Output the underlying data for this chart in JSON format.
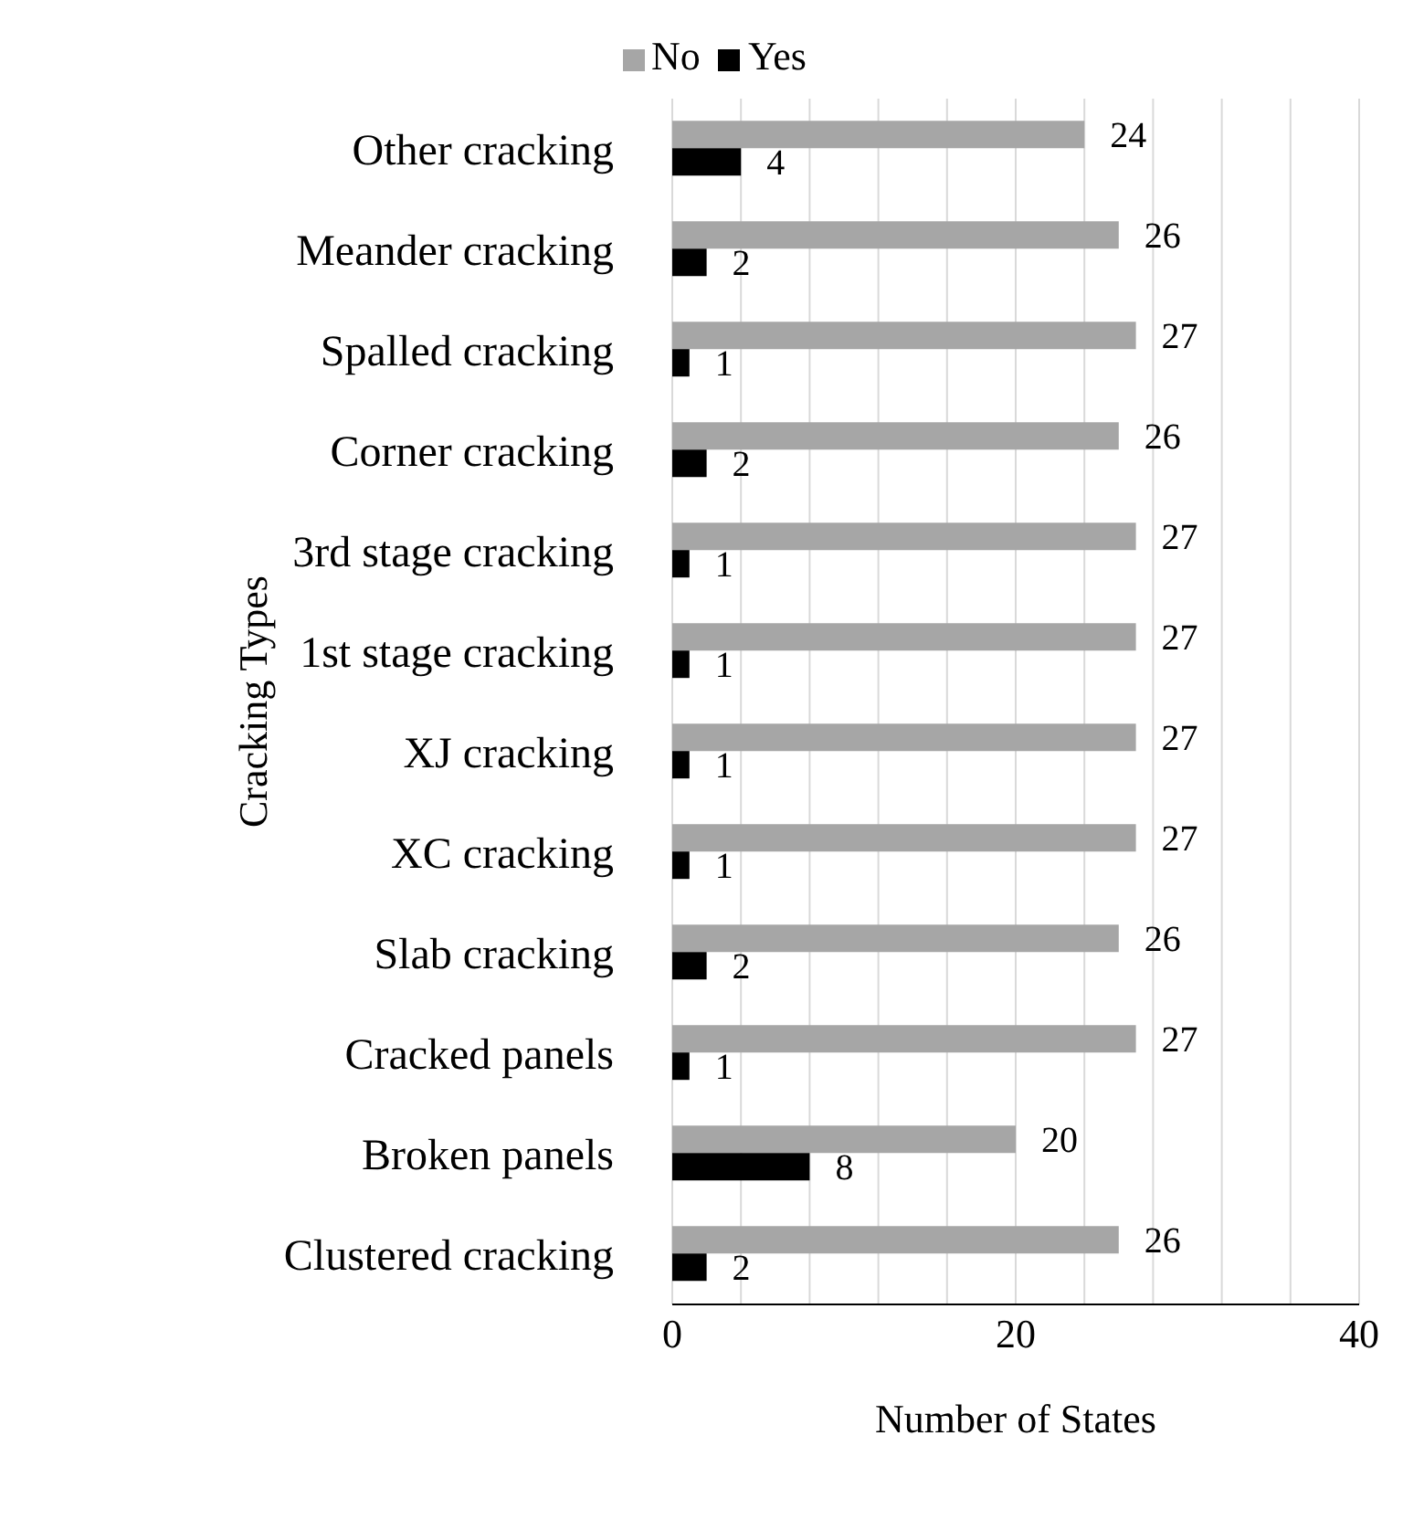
{
  "chart_data": {
    "type": "bar",
    "orientation": "horizontal",
    "xlabel": "Number of States",
    "ylabel": "Cracking Types",
    "categories": [
      "Other cracking",
      "Meander cracking",
      "Spalled cracking",
      "Corner cracking",
      "3rd stage cracking",
      "1st stage cracking",
      "XJ cracking",
      "XC cracking",
      "Slab cracking",
      "Cracked panels",
      "Broken panels",
      "Clustered cracking"
    ],
    "series": [
      {
        "name": "No",
        "color": "#a6a6a6",
        "values": [
          24,
          26,
          27,
          26,
          27,
          27,
          27,
          27,
          26,
          27,
          20,
          26
        ]
      },
      {
        "name": "Yes",
        "color": "#000000",
        "values": [
          4,
          2,
          1,
          2,
          1,
          1,
          1,
          1,
          2,
          1,
          8,
          2
        ]
      }
    ],
    "xlim": [
      0,
      40
    ],
    "xticks": [
      0,
      {
        "value": 4,
        "label": null
      },
      {
        "value": 8,
        "label": null
      },
      {
        "value": 12,
        "label": null
      },
      {
        "value": 16,
        "label": null
      },
      20,
      {
        "value": 24,
        "label": null
      },
      {
        "value": 28,
        "label": null
      },
      {
        "value": 32,
        "label": null
      },
      {
        "value": 36,
        "label": null
      },
      40
    ],
    "grid": "x",
    "legend": "top",
    "data_labels": true
  }
}
